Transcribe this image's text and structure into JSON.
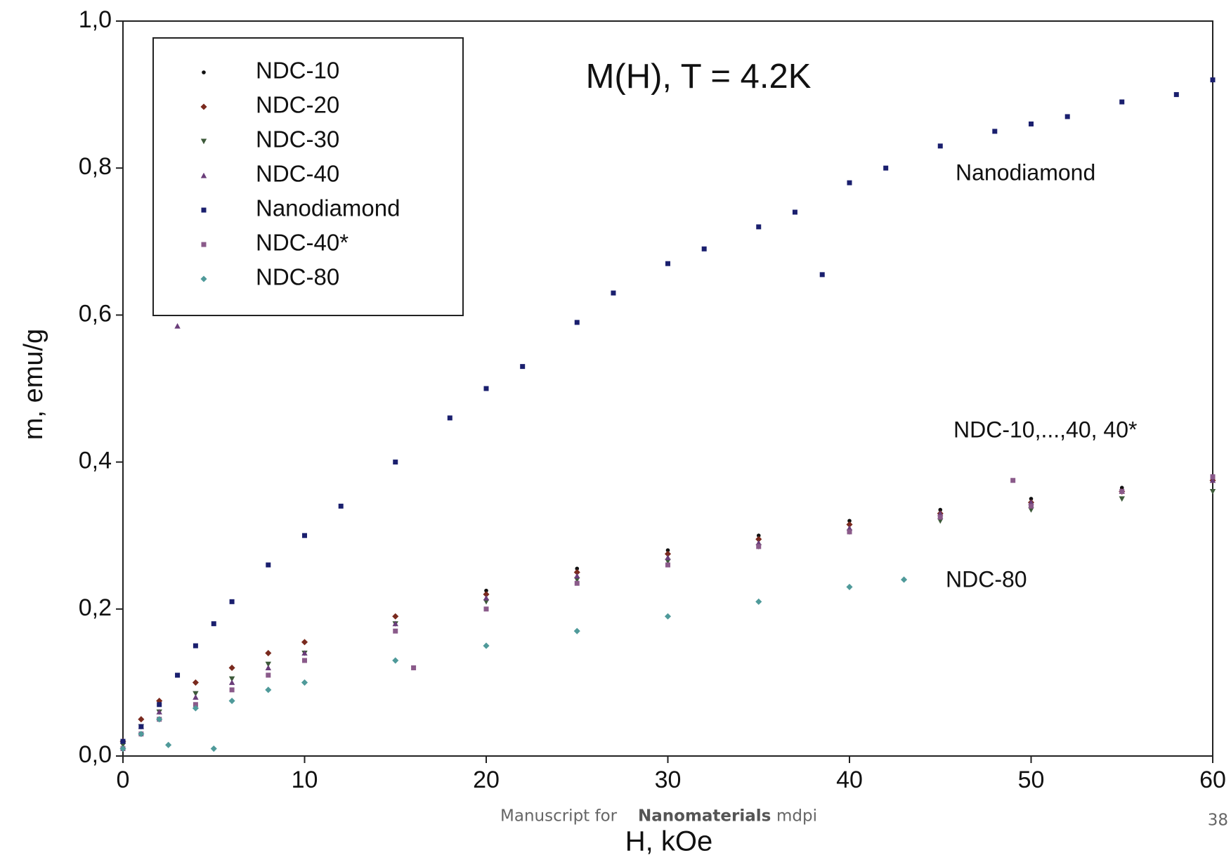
{
  "chart_data": {
    "type": "scatter",
    "title": "M(H), T = 4.2K",
    "x_label": "H, kOe",
    "y_label": "m, emu/g",
    "annotations": [
      "Nanodiamond",
      "NDC-10,...,40, 40*",
      "NDC-80"
    ],
    "xlim": [
      0,
      60
    ],
    "ylim": [
      0,
      1.0
    ],
    "xticks": [
      0,
      10,
      20,
      30,
      40,
      50,
      60
    ],
    "yticks": [
      {
        "value": 0,
        "label": "0,0"
      },
      {
        "value": 0.2,
        "label": "0,2"
      },
      {
        "value": 0.4,
        "label": "0,4"
      },
      {
        "value": 0.6,
        "label": "0,6"
      },
      {
        "value": 0.8,
        "label": "0,8"
      },
      {
        "value": 1.0,
        "label": "1,0"
      }
    ],
    "legend": "top-left",
    "series": [
      {
        "name": "NDC-10",
        "color": "#111111",
        "marker": "circle",
        "x": [
          0,
          1,
          2,
          4,
          6,
          8,
          10,
          15,
          20,
          25,
          30,
          35,
          40,
          45,
          50,
          55,
          60
        ],
        "values": [
          0.02,
          0.05,
          0.07,
          0.1,
          0.12,
          0.14,
          0.155,
          0.19,
          0.225,
          0.255,
          0.28,
          0.3,
          0.32,
          0.335,
          0.35,
          0.365,
          0.38
        ]
      },
      {
        "name": "NDC-20",
        "color": "#7a2a1e",
        "marker": "diamond",
        "x": [
          0,
          1,
          2,
          4,
          6,
          8,
          10,
          15,
          20,
          25,
          30,
          35,
          40,
          45,
          50,
          55,
          60
        ],
        "values": [
          0.02,
          0.05,
          0.075,
          0.1,
          0.12,
          0.14,
          0.155,
          0.19,
          0.22,
          0.25,
          0.275,
          0.295,
          0.315,
          0.33,
          0.345,
          0.36,
          0.375
        ]
      },
      {
        "name": "NDC-30",
        "color": "#3d5a3a",
        "marker": "triangle-down",
        "x": [
          0,
          1,
          2,
          4,
          6,
          8,
          10,
          15,
          20,
          25,
          30,
          35,
          40,
          45,
          50,
          55,
          60
        ],
        "values": [
          0.015,
          0.04,
          0.06,
          0.085,
          0.105,
          0.125,
          0.14,
          0.18,
          0.21,
          0.24,
          0.265,
          0.285,
          0.305,
          0.32,
          0.335,
          0.35,
          0.36
        ]
      },
      {
        "name": "NDC-40",
        "color": "#6a3d7a",
        "marker": "triangle-up",
        "x": [
          0,
          1,
          2,
          3,
          4,
          6,
          8,
          10,
          15,
          20,
          25,
          30,
          35,
          40,
          45,
          50,
          55,
          60
        ],
        "values": [
          0.02,
          0.04,
          0.06,
          0.585,
          0.08,
          0.1,
          0.12,
          0.14,
          0.18,
          0.215,
          0.245,
          0.27,
          0.29,
          0.31,
          0.33,
          0.345,
          0.36,
          0.375
        ]
      },
      {
        "name": "Nanodiamond",
        "color": "#1a1f6e",
        "marker": "square",
        "x": [
          0,
          1,
          2,
          3,
          4,
          5,
          6,
          8,
          10,
          12,
          15,
          18,
          20,
          22,
          25,
          27,
          30,
          32,
          35,
          37,
          38.5,
          40,
          42,
          45,
          48,
          50,
          52,
          55,
          58,
          60
        ],
        "values": [
          0.02,
          0.04,
          0.07,
          0.11,
          0.15,
          0.18,
          0.21,
          0.26,
          0.3,
          0.34,
          0.4,
          0.46,
          0.5,
          0.53,
          0.59,
          0.63,
          0.67,
          0.69,
          0.72,
          0.74,
          0.655,
          0.78,
          0.8,
          0.83,
          0.85,
          0.86,
          0.87,
          0.89,
          0.9,
          0.92
        ]
      },
      {
        "name": "NDC-40*",
        "color": "#8a5a8a",
        "marker": "square",
        "x": [
          0,
          1,
          2,
          4,
          6,
          8,
          10,
          15,
          16,
          20,
          25,
          30,
          35,
          40,
          45,
          49,
          50,
          55,
          60
        ],
        "values": [
          0.01,
          0.03,
          0.05,
          0.07,
          0.09,
          0.11,
          0.13,
          0.17,
          0.12,
          0.2,
          0.235,
          0.26,
          0.285,
          0.305,
          0.325,
          0.375,
          0.34,
          0.36,
          0.38
        ]
      },
      {
        "name": "NDC-80",
        "color": "#4f9a9a",
        "marker": "diamond",
        "x": [
          0,
          1,
          2,
          2.5,
          4,
          5,
          6,
          8,
          10,
          15,
          20,
          25,
          30,
          35,
          40,
          43
        ],
        "values": [
          0.01,
          0.03,
          0.05,
          0.015,
          0.065,
          0.01,
          0.075,
          0.09,
          0.1,
          0.13,
          0.15,
          0.17,
          0.19,
          0.21,
          0.23,
          0.24
        ]
      }
    ]
  },
  "footer": {
    "parts": [
      "Manuscript for",
      "Nanomaterials",
      "mdpi"
    ],
    "page": "38"
  }
}
